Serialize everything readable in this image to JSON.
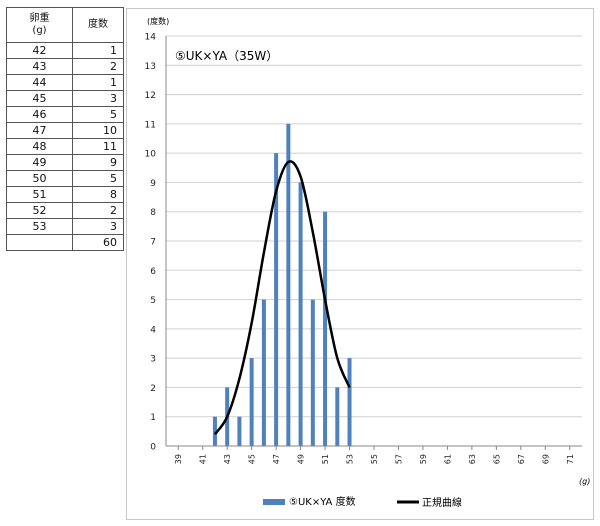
{
  "table": {
    "headers": [
      "卵重\n(g)",
      "度数"
    ],
    "rows": [
      [
        "42",
        "1"
      ],
      [
        "43",
        "2"
      ],
      [
        "44",
        "1"
      ],
      [
        "45",
        "3"
      ],
      [
        "46",
        "5"
      ],
      [
        "47",
        "10"
      ],
      [
        "48",
        "11"
      ],
      [
        "49",
        "9"
      ],
      [
        "50",
        "5"
      ],
      [
        "51",
        "8"
      ],
      [
        "52",
        "2"
      ],
      [
        "53",
        "3"
      ]
    ],
    "total": [
      "",
      "60"
    ]
  },
  "chart_data": {
    "type": "bar",
    "title": "⑤UK×YA（35W）",
    "ylabel": "(度数)",
    "xlabel": "(g)",
    "ylim": [
      0,
      14
    ],
    "xlim": [
      38,
      72
    ],
    "x_ticks": [
      39,
      41,
      43,
      45,
      47,
      49,
      51,
      53,
      55,
      57,
      59,
      61,
      63,
      65,
      67,
      69,
      71
    ],
    "y_ticks": [
      0,
      1,
      2,
      3,
      4,
      5,
      6,
      7,
      8,
      9,
      10,
      11,
      12,
      13,
      14
    ],
    "grid": true,
    "legend_position": "bottom",
    "series": [
      {
        "name": "⑤UK×YA 度数",
        "type": "bar",
        "color": "#4f81bd",
        "x": [
          42,
          43,
          44,
          45,
          46,
          47,
          48,
          49,
          50,
          51,
          52,
          53
        ],
        "values": [
          1,
          2,
          1,
          3,
          5,
          10,
          11,
          9,
          5,
          8,
          2,
          3
        ]
      },
      {
        "name": "正規曲線",
        "type": "line",
        "color": "#000000",
        "x": [
          42,
          43,
          44,
          45,
          46,
          47,
          48,
          49,
          50,
          51,
          52,
          53
        ],
        "values": [
          0.4,
          1.0,
          2.3,
          4.2,
          6.6,
          8.7,
          9.7,
          9.2,
          7.3,
          5.0,
          3.0,
          2.0
        ]
      }
    ]
  }
}
